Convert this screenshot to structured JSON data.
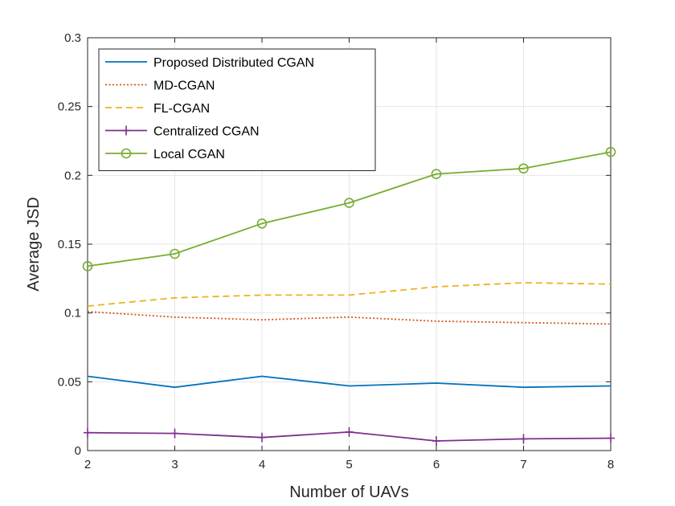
{
  "chart_data": {
    "type": "line",
    "title": "",
    "xlabel": "Number of UAVs",
    "ylabel": "Average JSD",
    "x": [
      2,
      3,
      4,
      5,
      6,
      7,
      8
    ],
    "xlim": [
      2,
      8
    ],
    "ylim": [
      0,
      0.3
    ],
    "xticks": [
      "2",
      "3",
      "4",
      "5",
      "6",
      "7",
      "8"
    ],
    "yticks": [
      "0",
      "0.05",
      "0.1",
      "0.15",
      "0.2",
      "0.25",
      "0.3"
    ],
    "grid": true,
    "legend_position": "top-left",
    "series": [
      {
        "name": "Proposed Distributed CGAN",
        "color": "#0072BD",
        "style": "solid",
        "marker": "none",
        "values": [
          0.054,
          0.046,
          0.054,
          0.047,
          0.049,
          0.046,
          0.047
        ]
      },
      {
        "name": "MD-CGAN",
        "color": "#D95319",
        "style": "dotted",
        "marker": "none",
        "values": [
          0.101,
          0.097,
          0.095,
          0.097,
          0.094,
          0.093,
          0.092
        ]
      },
      {
        "name": "FL-CGAN",
        "color": "#EDB120",
        "style": "dashed",
        "marker": "none",
        "values": [
          0.105,
          0.111,
          0.113,
          0.113,
          0.119,
          0.122,
          0.121
        ]
      },
      {
        "name": "Centralized CGAN",
        "color": "#7E2F8E",
        "style": "solid",
        "marker": "plus",
        "values": [
          0.013,
          0.0125,
          0.0095,
          0.0135,
          0.007,
          0.0085,
          0.009
        ]
      },
      {
        "name": "Local CGAN",
        "color": "#77AC30",
        "style": "solid",
        "marker": "circle",
        "values": [
          0.134,
          0.143,
          0.165,
          0.18,
          0.201,
          0.205,
          0.217
        ]
      }
    ]
  }
}
